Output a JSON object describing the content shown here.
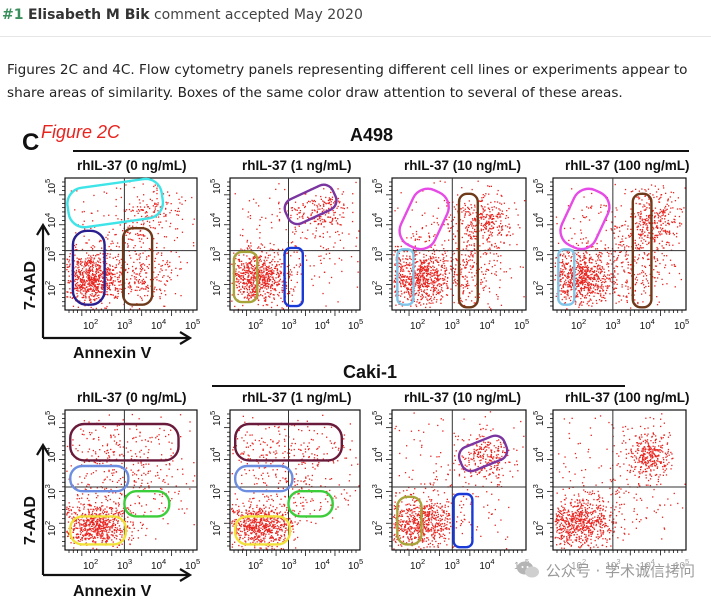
{
  "comment": {
    "number": "#1",
    "author": "Elisabeth M Bik",
    "status": "comment accepted May 2020",
    "text": "Figures 2C and 4C. Flow cytometry panels representing different cell lines or experiments appear to share areas of similarity. Boxes of the same color draw attention to several of these areas."
  },
  "figure": {
    "panel_letter": "C",
    "figure_label": "Figure 2C",
    "row1_title": "A498",
    "row2_title": "Caki-1",
    "panel_titles": [
      "rhIL-37 (0 ng/mL)",
      "rhIL-37 (1 ng/mL)",
      "rhIL-37 (10 ng/mL)",
      "rhIL-37 (100 ng/mL)"
    ],
    "y_axis_label": "7-AAD",
    "x_axis_label": "Annexin V",
    "tick_labels": [
      "10^2",
      "10^3",
      "10^4",
      "10^5"
    ],
    "tick_base": "10",
    "tick_exponents": [
      "2",
      "3",
      "4",
      "5"
    ],
    "colors": {
      "dots": "#e8241f",
      "figure_label": "#e8241f",
      "cyan": "#3ee4e8",
      "navy": "#2a1f8f",
      "brown": "#6e3a1a",
      "purple": "#7a35a0",
      "olive": "#a7a43a",
      "blue": "#1a3ad8",
      "magenta": "#e64be6",
      "lightblue": "#7fc6ea",
      "maroon": "#6a1a3a",
      "cornflower": "#6d8ee0",
      "green": "#3ccd3a",
      "yellow": "#f1e23a"
    }
  },
  "watermark": {
    "text": "公众号 · 学术诚信拷问"
  }
}
